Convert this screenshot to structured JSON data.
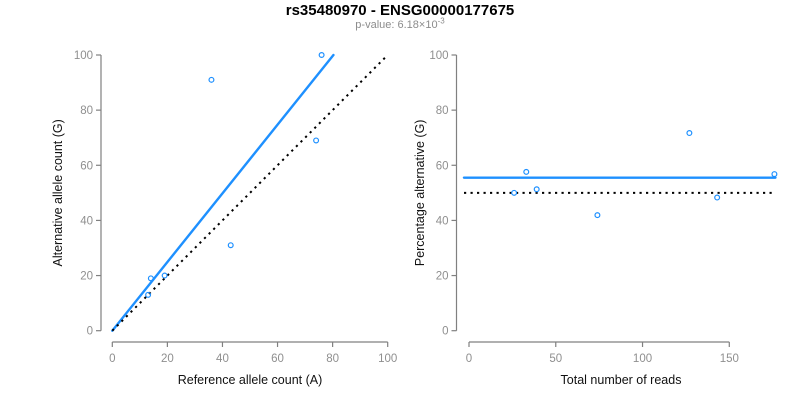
{
  "title": "rs35480970 - ENSG00000177675",
  "subtitle": {
    "text": "p-value: 6.18×10",
    "exponent": "-3"
  },
  "colors": {
    "accent_blue": "#1E90FF",
    "line_black": "#000000",
    "axis_gray": "#808080",
    "tick_label_gray": "#8f8f8f",
    "axis_title_color": "#111111",
    "title_color": "#000000",
    "subtitle_gray": "#8c8c8c"
  },
  "chart_data": [
    {
      "type": "scatter",
      "panel": "left",
      "xlabel": "Reference allele count (A)",
      "ylabel": "Alternative allele count (G)",
      "xlim": [
        0,
        100
      ],
      "ylim": [
        0,
        100
      ],
      "xticks": [
        0,
        20,
        40,
        60,
        80,
        100
      ],
      "yticks": [
        0,
        20,
        40,
        60,
        80,
        100
      ],
      "grid": false,
      "legend": "none",
      "marker": "open-circle",
      "points": [
        {
          "x": 13,
          "y": 13
        },
        {
          "x": 14,
          "y": 19
        },
        {
          "x": 19,
          "y": 20
        },
        {
          "x": 36,
          "y": 91
        },
        {
          "x": 43,
          "y": 31
        },
        {
          "x": 74,
          "y": 69
        },
        {
          "x": 76,
          "y": 100
        }
      ],
      "lines": [
        {
          "name": "regression-line",
          "style": "solid",
          "color": "#1E90FF",
          "from": {
            "x": 0,
            "y": 0
          },
          "to": {
            "x": 80.3,
            "y": 100
          }
        },
        {
          "name": "identity-line",
          "style": "dotted",
          "color": "#000000",
          "from": {
            "x": 0,
            "y": 0
          },
          "to": {
            "x": 100,
            "y": 100
          }
        }
      ]
    },
    {
      "type": "scatter",
      "panel": "right",
      "xlabel": "Total number of reads",
      "ylabel": "Percentage alternative (G)",
      "xlim": [
        0,
        176
      ],
      "ylim": [
        0,
        100
      ],
      "xticks": [
        0,
        50,
        100,
        150
      ],
      "yticks": [
        0,
        20,
        40,
        60,
        80,
        100
      ],
      "grid": false,
      "legend": "none",
      "marker": "open-circle",
      "points": [
        {
          "x": 26,
          "y": 50
        },
        {
          "x": 33,
          "y": 57.6
        },
        {
          "x": 39,
          "y": 51.3
        },
        {
          "x": 74,
          "y": 41.9
        },
        {
          "x": 127,
          "y": 71.7
        },
        {
          "x": 143,
          "y": 48.3
        },
        {
          "x": 176,
          "y": 56.8
        }
      ],
      "lines": [
        {
          "name": "mean-percentage-line",
          "style": "solid",
          "color": "#1E90FF",
          "y": 55.5
        },
        {
          "name": "fifty-percent-line",
          "style": "dotted",
          "color": "#000000",
          "y": 50
        }
      ]
    }
  ]
}
